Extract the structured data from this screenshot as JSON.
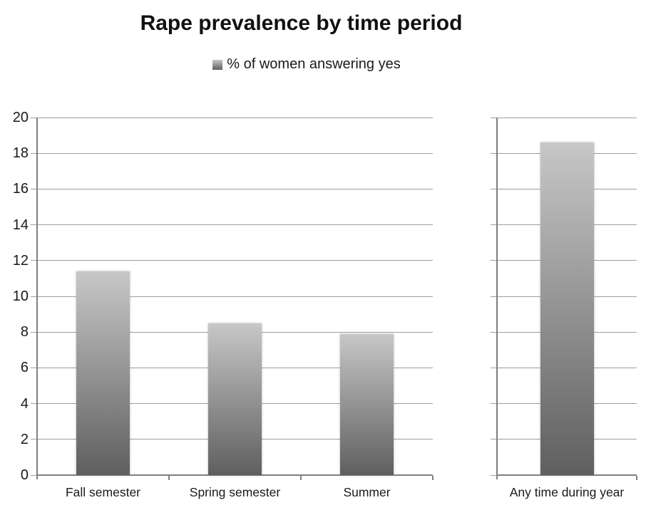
{
  "chart_data": {
    "type": "bar",
    "title": "Rape prevalence by time period",
    "legend": {
      "label": "% of women answering yes",
      "position": "top"
    },
    "ylim": [
      0,
      20
    ],
    "ytick_step": 2,
    "grid": true,
    "xlabel": "",
    "ylabel": "",
    "panels": [
      {
        "categories": [
          "Fall semester",
          "Spring semester",
          "Summer"
        ],
        "values": [
          11.4,
          8.5,
          7.9
        ]
      },
      {
        "categories": [
          "Any time during year"
        ],
        "values": [
          18.6
        ]
      }
    ],
    "series_name": "% of women answering yes",
    "colors": {
      "bar_gradient_top": "#c7c7c7",
      "bar_gradient_bottom": "#5f5f5f",
      "gridline": "#9d9d9d",
      "axis": "#7f7f7f",
      "text": "#1a1a1a",
      "background": "#ffffff"
    }
  }
}
